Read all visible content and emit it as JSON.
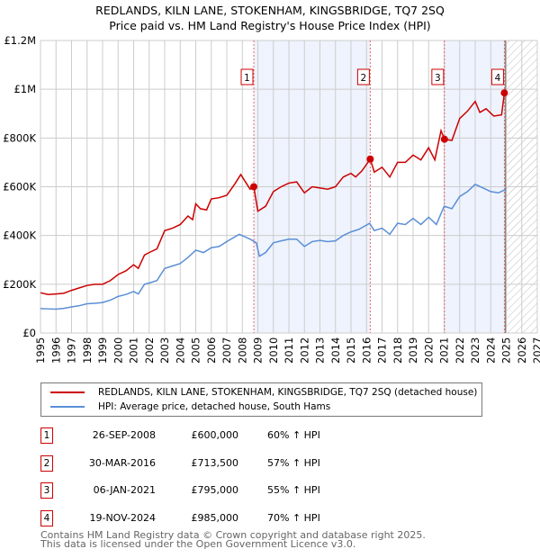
{
  "chart_data": {
    "type": "line",
    "title": "REDLANDS, KILN LANE, STOKENHAM, KINGSBRIDGE, TQ7 2SQ",
    "subtitle": "Price paid vs. HM Land Registry's House Price Index (HPI)",
    "xlim": [
      1995,
      2027
    ],
    "ylim": [
      0,
      1200000
    ],
    "x_ticks": [
      "1995",
      "1996",
      "1997",
      "1998",
      "1999",
      "2000",
      "2001",
      "2002",
      "2003",
      "2004",
      "2005",
      "2006",
      "2007",
      "2008",
      "2009",
      "2010",
      "2011",
      "2012",
      "2013",
      "2014",
      "2015",
      "2016",
      "2017",
      "2018",
      "2019",
      "2020",
      "2021",
      "2022",
      "2023",
      "2024",
      "2025",
      "2026",
      "2027"
    ],
    "y_ticks": [
      {
        "v": 0,
        "label": "£0"
      },
      {
        "v": 200000,
        "label": "£200K"
      },
      {
        "v": 400000,
        "label": "£400K"
      },
      {
        "v": 600000,
        "label": "£600K"
      },
      {
        "v": 800000,
        "label": "£800K"
      },
      {
        "v": 1000000,
        "label": "£1M"
      },
      {
        "v": 1200000,
        "label": "£1.2M"
      }
    ],
    "grid": true,
    "shaded_ranges": [
      [
        2008.74,
        2016.24
      ],
      [
        2021.02,
        2024.88
      ]
    ],
    "forecast_hatch_from": 2025,
    "series": [
      {
        "name": "REDLANDS, KILN LANE, STOKENHAM, KINGSBRIDGE, TQ7 2SQ (detached house)",
        "color": "#cc0000",
        "points": [
          [
            1995,
            165
          ],
          [
            1995.5,
            158
          ],
          [
            1996,
            160
          ],
          [
            1996.5,
            163
          ],
          [
            1997,
            175
          ],
          [
            1997.5,
            185
          ],
          [
            1998,
            195
          ],
          [
            1998.5,
            200
          ],
          [
            1999,
            200
          ],
          [
            1999.5,
            215
          ],
          [
            2000,
            240
          ],
          [
            2000.5,
            255
          ],
          [
            2001,
            280
          ],
          [
            2001.3,
            265
          ],
          [
            2001.7,
            320
          ],
          [
            2002,
            330
          ],
          [
            2002.5,
            345
          ],
          [
            2003,
            420
          ],
          [
            2003.5,
            430
          ],
          [
            2004,
            445
          ],
          [
            2004.5,
            480
          ],
          [
            2004.8,
            465
          ],
          [
            2005,
            530
          ],
          [
            2005.3,
            510
          ],
          [
            2005.7,
            505
          ],
          [
            2006,
            550
          ],
          [
            2006.5,
            555
          ],
          [
            2007,
            565
          ],
          [
            2007.5,
            610
          ],
          [
            2007.9,
            650
          ],
          [
            2008.2,
            620
          ],
          [
            2008.5,
            590
          ],
          [
            2008.74,
            600
          ],
          [
            2009,
            500
          ],
          [
            2009.5,
            520
          ],
          [
            2010,
            580
          ],
          [
            2010.5,
            600
          ],
          [
            2011,
            615
          ],
          [
            2011.5,
            620
          ],
          [
            2012,
            575
          ],
          [
            2012.5,
            600
          ],
          [
            2013,
            595
          ],
          [
            2013.5,
            590
          ],
          [
            2014,
            600
          ],
          [
            2014.5,
            640
          ],
          [
            2015,
            655
          ],
          [
            2015.3,
            640
          ],
          [
            2015.7,
            665
          ],
          [
            2016.24,
            713.5
          ],
          [
            2016.5,
            660
          ],
          [
            2017,
            680
          ],
          [
            2017.5,
            640
          ],
          [
            2018,
            700
          ],
          [
            2018.5,
            700
          ],
          [
            2019,
            730
          ],
          [
            2019.5,
            710
          ],
          [
            2020,
            760
          ],
          [
            2020.4,
            710
          ],
          [
            2020.8,
            830
          ],
          [
            2021.02,
            795
          ],
          [
            2021.5,
            790
          ],
          [
            2022,
            880
          ],
          [
            2022.5,
            910
          ],
          [
            2023,
            950
          ],
          [
            2023.3,
            905
          ],
          [
            2023.7,
            920
          ],
          [
            2024.2,
            890
          ],
          [
            2024.7,
            895
          ],
          [
            2024.88,
            985
          ]
        ]
      },
      {
        "name": "HPI: Average price, detached house, South Hams",
        "color": "#5b8fd6",
        "points": [
          [
            1995,
            100
          ],
          [
            1995.5,
            99
          ],
          [
            1996,
            98
          ],
          [
            1996.5,
            101
          ],
          [
            1997,
            107
          ],
          [
            1997.5,
            112
          ],
          [
            1998,
            120
          ],
          [
            1998.5,
            122
          ],
          [
            1999,
            125
          ],
          [
            1999.5,
            135
          ],
          [
            2000,
            150
          ],
          [
            2000.5,
            158
          ],
          [
            2001,
            170
          ],
          [
            2001.3,
            160
          ],
          [
            2001.7,
            200
          ],
          [
            2002,
            205
          ],
          [
            2002.5,
            215
          ],
          [
            2003,
            265
          ],
          [
            2003.5,
            275
          ],
          [
            2004,
            285
          ],
          [
            2004.5,
            310
          ],
          [
            2005,
            340
          ],
          [
            2005.5,
            330
          ],
          [
            2006,
            350
          ],
          [
            2006.5,
            355
          ],
          [
            2007,
            375
          ],
          [
            2007.8,
            405
          ],
          [
            2008.5,
            385
          ],
          [
            2008.9,
            370
          ],
          [
            2009.1,
            315
          ],
          [
            2009.5,
            330
          ],
          [
            2010,
            370
          ],
          [
            2010.5,
            378
          ],
          [
            2011,
            385
          ],
          [
            2011.5,
            385
          ],
          [
            2012,
            355
          ],
          [
            2012.5,
            375
          ],
          [
            2013,
            380
          ],
          [
            2013.5,
            375
          ],
          [
            2014,
            378
          ],
          [
            2014.5,
            400
          ],
          [
            2015,
            415
          ],
          [
            2015.5,
            425
          ],
          [
            2016.2,
            450
          ],
          [
            2016.5,
            420
          ],
          [
            2017,
            430
          ],
          [
            2017.5,
            405
          ],
          [
            2018,
            450
          ],
          [
            2018.5,
            445
          ],
          [
            2019,
            470
          ],
          [
            2019.5,
            445
          ],
          [
            2020,
            475
          ],
          [
            2020.5,
            445
          ],
          [
            2021,
            520
          ],
          [
            2021.5,
            510
          ],
          [
            2022,
            560
          ],
          [
            2022.5,
            580
          ],
          [
            2023,
            610
          ],
          [
            2023.5,
            595
          ],
          [
            2024,
            580
          ],
          [
            2024.5,
            575
          ],
          [
            2025,
            590
          ]
        ]
      }
    ],
    "sales": [
      {
        "n": "1",
        "x": 2008.74,
        "price": 600,
        "date": "26-SEP-2008",
        "price_label": "£600,000",
        "hpi": "60% ↑ HPI"
      },
      {
        "n": "2",
        "x": 2016.24,
        "price": 713.5,
        "date": "30-MAR-2016",
        "price_label": "£713,500",
        "hpi": "57% ↑ HPI"
      },
      {
        "n": "3",
        "x": 2021.02,
        "price": 795,
        "date": "06-JAN-2021",
        "price_label": "£795,000",
        "hpi": "55% ↑ HPI"
      },
      {
        "n": "4",
        "x": 2024.88,
        "price": 985,
        "date": "19-NOV-2024",
        "price_label": "£985,000",
        "hpi": "70% ↑ HPI"
      }
    ],
    "units_note": "series values in £K"
  },
  "footer": {
    "line1": "Contains HM Land Registry data © Crown copyright and database right 2025.",
    "line2": "This data is licensed under the Open Government Licence v3.0."
  }
}
